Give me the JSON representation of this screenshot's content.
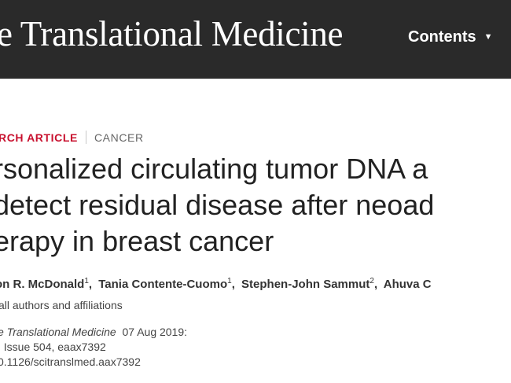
{
  "header": {
    "journal_name": "e Translational Medicine",
    "nav_contents_label": "Contents",
    "nav_contents_caret": "▼"
  },
  "article": {
    "type_label": "RCH ARTICLE",
    "subject_label": "CANCER",
    "title_lines": [
      "rsonalized circulating tumor DNA a",
      "detect residual disease after neoad",
      "erapy in breast cancer"
    ],
    "authors": [
      {
        "name": "on R. McDonald",
        "sup": "1"
      },
      {
        "name": "Tania Contente-Cuomo",
        "sup": "1"
      },
      {
        "name": "Stephen-John Sammut",
        "sup": "2"
      },
      {
        "name": "Ahuva C",
        "sup": ""
      }
    ],
    "affiliations_link": "all authors and affiliations",
    "citation": {
      "journal": "e Translational Medicine",
      "date": "07 Aug 2019:",
      "volume_issue": ", Issue 504, eaax7392",
      "doi": "0.1126/scitranslmed.aax7392"
    }
  }
}
